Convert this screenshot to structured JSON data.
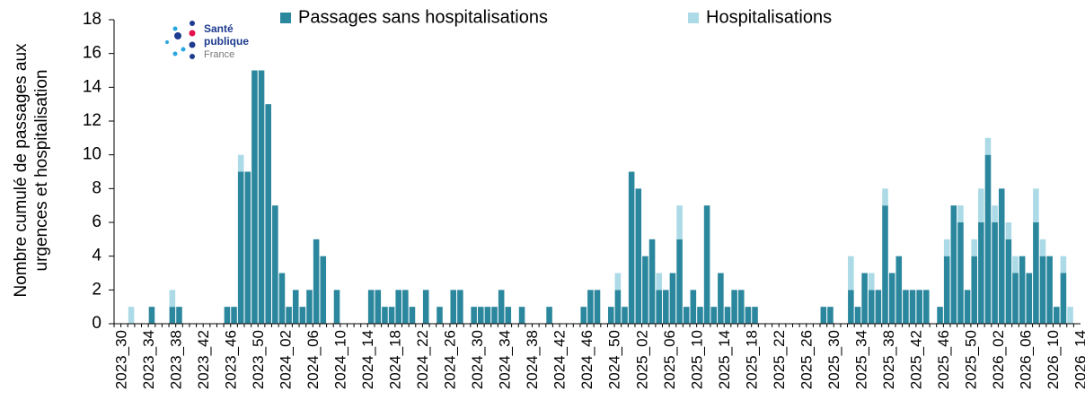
{
  "logo": [
    "Santé",
    "publique",
    "France"
  ],
  "chart_data": {
    "type": "stacked_bar",
    "ylabel": [
      "Nombre cumulé de passages aux",
      "urgences  et hospitalisation"
    ],
    "categories": [
      "2023_30",
      null,
      null,
      null,
      "2023_34",
      null,
      null,
      null,
      "2023_38",
      null,
      null,
      null,
      "2023_42",
      null,
      null,
      null,
      "2023_46",
      null,
      null,
      null,
      "2023_50",
      null,
      null,
      null,
      "2024_02",
      null,
      null,
      null,
      "2024_06",
      null,
      null,
      null,
      "2024_10",
      null,
      null,
      null,
      "2024_14",
      null,
      null,
      null,
      "2024_18",
      null,
      null,
      null,
      "2024_22",
      null,
      null,
      null,
      "2024_26",
      null,
      null,
      null,
      "2024_30",
      null,
      null,
      null,
      "2024_34",
      null,
      null,
      null,
      "2024_38",
      null,
      null,
      null,
      "2024_42",
      null,
      null,
      null,
      "2024_46",
      null,
      null,
      null,
      "2024_50",
      null,
      null,
      null,
      "2025_02",
      null,
      null,
      null,
      "2025_06",
      null,
      null,
      null,
      "2025_10",
      null,
      null,
      null,
      "2025_14",
      null,
      null,
      null,
      "2025_18",
      null,
      null,
      null,
      "2025_22",
      null,
      null,
      null,
      "2025_26",
      null,
      null,
      null,
      "2025_30",
      null,
      null,
      null,
      "2025_34",
      null,
      null,
      null,
      "2025_38",
      null,
      null,
      null,
      "2025_42",
      null,
      null,
      null,
      "2025_46",
      null,
      null,
      null,
      "2025_50",
      null,
      null,
      null,
      "2026_02",
      null,
      null,
      null,
      "2026_06",
      null,
      null,
      null,
      "2026_10",
      null,
      null,
      null,
      "2026_14"
    ],
    "series": [
      {
        "name": "Passages sans hospitalisations",
        "color": "#2b879d",
        "values": [
          0,
          0,
          0,
          0,
          0,
          1,
          0,
          0,
          1,
          1,
          0,
          0,
          0,
          0,
          0,
          0,
          1,
          1,
          9,
          9,
          15,
          15,
          13,
          7,
          3,
          1,
          2,
          1,
          2,
          5,
          4,
          0,
          2,
          0,
          0,
          0,
          0,
          2,
          2,
          1,
          1,
          2,
          2,
          1,
          0,
          2,
          0,
          1,
          0,
          2,
          2,
          0,
          1,
          1,
          1,
          1,
          2,
          1,
          0,
          1,
          0,
          0,
          0,
          1,
          0,
          0,
          0,
          0,
          1,
          2,
          2,
          0,
          1,
          2,
          1,
          9,
          8,
          4,
          5,
          2,
          2,
          3,
          5,
          1,
          2,
          1,
          7,
          1,
          3,
          1,
          2,
          2,
          1,
          1,
          0,
          0,
          0,
          0,
          0,
          0,
          0,
          0,
          0,
          1,
          1,
          0,
          0,
          2,
          1,
          3,
          2,
          2,
          7,
          3,
          4,
          2,
          2,
          2,
          2,
          0,
          1,
          4,
          7,
          6,
          2,
          4,
          6,
          10,
          6,
          8,
          5,
          3,
          4,
          3,
          6,
          4,
          4,
          1,
          3,
          0,
          0
        ]
      },
      {
        "name": "Hospitalisations",
        "color": "#acdae7",
        "values": [
          0,
          0,
          1,
          0,
          0,
          0,
          0,
          0,
          1,
          0,
          0,
          0,
          0,
          0,
          0,
          0,
          0,
          0,
          1,
          0,
          0,
          0,
          0,
          0,
          0,
          0,
          0,
          0,
          0,
          0,
          0,
          0,
          0,
          0,
          0,
          0,
          0,
          0,
          0,
          0,
          0,
          0,
          0,
          0,
          0,
          0,
          0,
          0,
          0,
          0,
          0,
          0,
          0,
          0,
          0,
          0,
          0,
          0,
          0,
          0,
          0,
          0,
          0,
          0,
          0,
          0,
          0,
          0,
          0,
          0,
          0,
          0,
          0,
          1,
          0,
          0,
          0,
          0,
          0,
          1,
          0,
          0,
          2,
          0,
          0,
          0,
          0,
          0,
          0,
          0,
          0,
          0,
          0,
          0,
          0,
          0,
          0,
          0,
          0,
          0,
          0,
          0,
          0,
          0,
          0,
          0,
          0,
          2,
          0,
          0,
          1,
          0,
          1,
          0,
          0,
          0,
          0,
          0,
          0,
          0,
          0,
          1,
          0,
          1,
          0,
          1,
          2,
          1,
          1,
          0,
          1,
          1,
          0,
          0,
          2,
          1,
          0,
          0,
          1,
          1,
          0
        ]
      }
    ],
    "ylim": [
      0,
      18
    ],
    "yticks": [
      0,
      2,
      4,
      6,
      8,
      10,
      12,
      14,
      16,
      18
    ],
    "legend": "top"
  }
}
